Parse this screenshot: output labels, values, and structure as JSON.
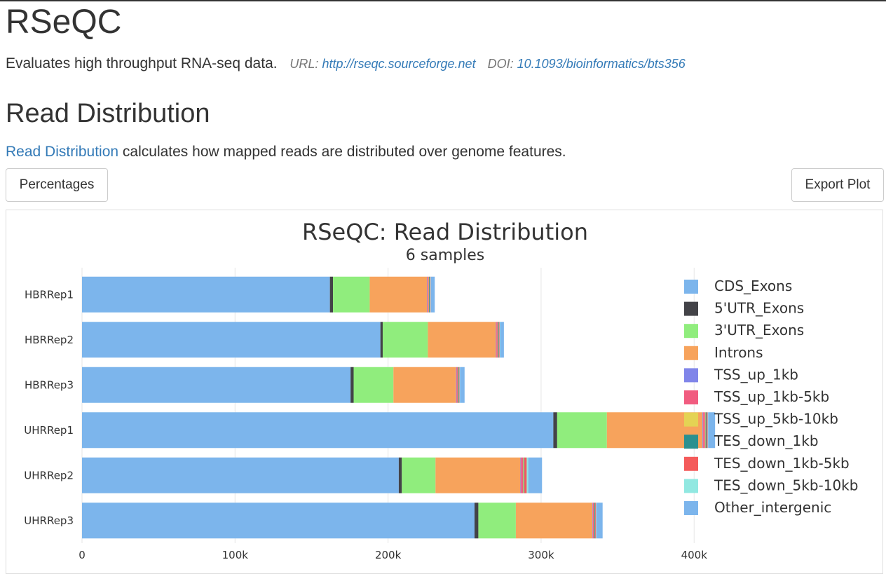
{
  "header": {
    "title": "RSeQC",
    "description": "Evaluates high throughput RNA-seq data.",
    "url_label": "URL:",
    "url": "http://rseqc.sourceforge.net",
    "doi_label": "DOI:",
    "doi": "10.1093/bioinformatics/bts356"
  },
  "section": {
    "title": "Read Distribution",
    "link_text": "Read Distribution",
    "text": " calculates how mapped reads are distributed over genome features."
  },
  "toolbar": {
    "percentages_label": "Percentages",
    "export_label": "Export Plot"
  },
  "chart_data": {
    "type": "bar",
    "orientation": "horizontal",
    "stacked": true,
    "title": "RSeQC: Read Distribution",
    "subtitle": "6 samples",
    "categories": [
      "HBRRep1",
      "HBRRep2",
      "HBRRep3",
      "UHRRep1",
      "UHRRep2",
      "UHRRep3"
    ],
    "xlim": [
      0,
      415000
    ],
    "xticks": [
      0,
      100000,
      200000,
      300000,
      400000
    ],
    "xtick_labels": [
      "0",
      "100k",
      "200k",
      "300k",
      "400k"
    ],
    "legend_position": "right",
    "series": [
      {
        "name": "CDS_Exons",
        "color": "#7cb5ec",
        "values": [
          162000,
          195000,
          175500,
          308000,
          207000,
          256500
        ]
      },
      {
        "name": "5'UTR_Exons",
        "color": "#434348",
        "values": [
          2000,
          1500,
          2000,
          2500,
          2000,
          2500
        ]
      },
      {
        "name": "3'UTR_Exons",
        "color": "#90ed7d",
        "values": [
          24000,
          29500,
          26000,
          32500,
          22000,
          24500
        ]
      },
      {
        "name": "Introns",
        "color": "#f7a35c",
        "values": [
          37500,
          44500,
          41000,
          62500,
          55500,
          50000
        ]
      },
      {
        "name": "TSS_up_1kb",
        "color": "#8085e9",
        "values": [
          300,
          300,
          300,
          400,
          400,
          300
        ]
      },
      {
        "name": "TSS_up_1kb-5kb",
        "color": "#f15c80",
        "values": [
          700,
          800,
          700,
          1200,
          1300,
          800
        ]
      },
      {
        "name": "TSS_up_5kb-10kb",
        "color": "#e4d354",
        "values": [
          300,
          300,
          300,
          400,
          400,
          300
        ]
      },
      {
        "name": "TES_down_1kb",
        "color": "#2b908f",
        "values": [
          500,
          500,
          500,
          600,
          500,
          500
        ]
      },
      {
        "name": "TES_down_1kb-5kb",
        "color": "#f45b5b",
        "values": [
          400,
          500,
          400,
          700,
          1500,
          500
        ]
      },
      {
        "name": "TES_down_5kb-10kb",
        "color": "#91e8e1",
        "values": [
          300,
          300,
          300,
          400,
          1000,
          300
        ]
      },
      {
        "name": "Other_intergenic",
        "color": "#7cb5ec",
        "values": [
          2500,
          2500,
          3000,
          4500,
          9000,
          4000
        ]
      }
    ]
  }
}
